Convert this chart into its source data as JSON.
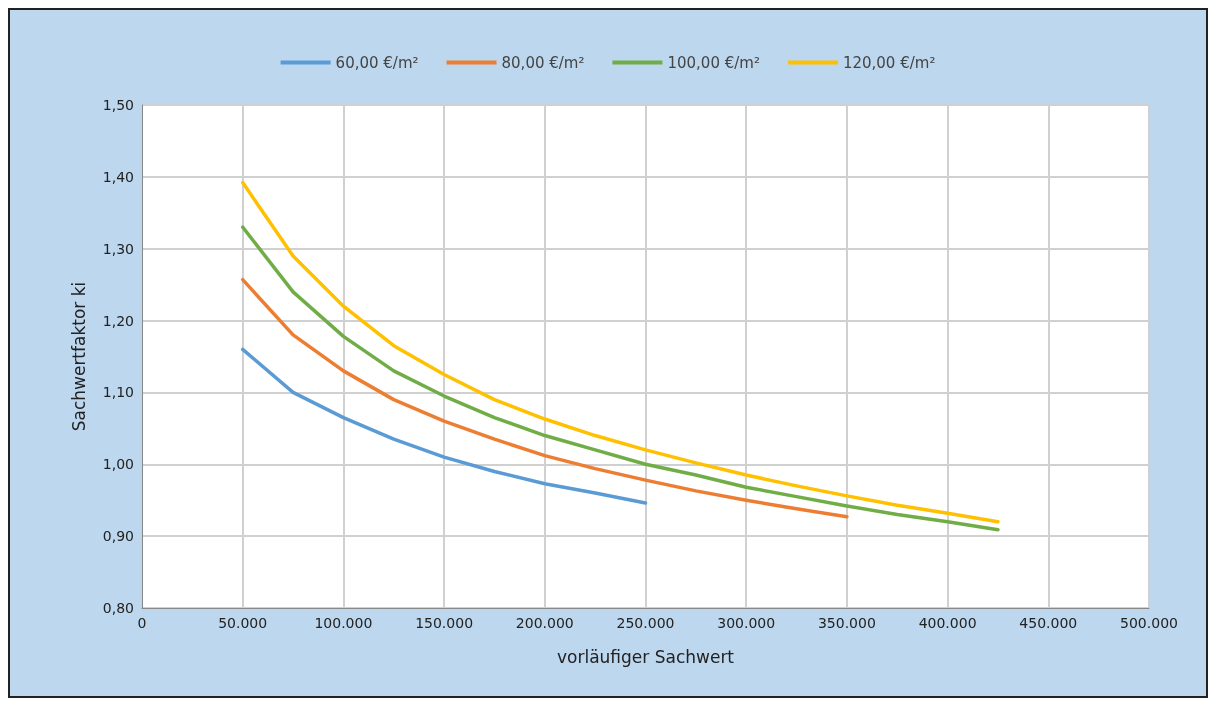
{
  "chart_data": {
    "type": "line",
    "xlabel": "vorläufiger Sachwert",
    "ylabel": "Sachwertfaktor ki",
    "xlim": [
      0,
      500000
    ],
    "xticks": [
      {
        "value": 0,
        "label": "0"
      },
      {
        "value": 50000,
        "label": "50.000"
      },
      {
        "value": 100000,
        "label": "100.000"
      },
      {
        "value": 150000,
        "label": "150.000"
      },
      {
        "value": 200000,
        "label": "200.000"
      },
      {
        "value": 250000,
        "label": "250.000"
      },
      {
        "value": 300000,
        "label": "300.000"
      },
      {
        "value": 350000,
        "label": "350.000"
      },
      {
        "value": 400000,
        "label": "400.000"
      },
      {
        "value": 450000,
        "label": "450.000"
      },
      {
        "value": 500000,
        "label": "500.000"
      }
    ],
    "ylim": [
      0.8,
      1.5
    ],
    "yticks": [
      {
        "value": 0.8,
        "label": "0,80"
      },
      {
        "value": 0.9,
        "label": "0,90"
      },
      {
        "value": 1.0,
        "label": "1,00"
      },
      {
        "value": 1.1,
        "label": "1,10"
      },
      {
        "value": 1.2,
        "label": "1,20"
      },
      {
        "value": 1.3,
        "label": "1,30"
      },
      {
        "value": 1.4,
        "label": "1,40"
      },
      {
        "value": 1.5,
        "label": "1,50"
      }
    ],
    "grid": true,
    "legend": "top",
    "marker": "none",
    "line_style": "solid",
    "series": [
      {
        "name": "60,00 €/m²",
        "color": "#5b9bd5",
        "x": [
          50000,
          75000,
          100000,
          125000,
          150000,
          175000,
          200000,
          225000,
          250000
        ],
        "values": [
          1.16,
          1.1,
          1.065,
          1.035,
          1.01,
          0.99,
          0.973,
          0.96,
          0.946
        ]
      },
      {
        "name": "80,00 €/m²",
        "color": "#ed7d31",
        "x": [
          50000,
          75000,
          100000,
          125000,
          150000,
          175000,
          200000,
          225000,
          250000,
          275000,
          300000,
          325000,
          350000
        ],
        "values": [
          1.257,
          1.18,
          1.13,
          1.09,
          1.06,
          1.035,
          1.012,
          0.994,
          0.978,
          0.963,
          0.95,
          0.938,
          0.927
        ]
      },
      {
        "name": "100,00 €/m²",
        "color": "#70ad47",
        "x": [
          50000,
          75000,
          100000,
          125000,
          150000,
          175000,
          200000,
          225000,
          250000,
          275000,
          300000,
          325000,
          350000,
          375000,
          400000,
          425000
        ],
        "values": [
          1.33,
          1.24,
          1.178,
          1.13,
          1.095,
          1.065,
          1.04,
          1.02,
          1.0,
          0.985,
          0.968,
          0.955,
          0.942,
          0.93,
          0.92,
          0.909
        ]
      },
      {
        "name": "120,00 €/m²",
        "color": "#ffc000",
        "x": [
          50000,
          75000,
          100000,
          125000,
          150000,
          175000,
          200000,
          225000,
          250000,
          275000,
          300000,
          325000,
          350000,
          375000,
          400000,
          425000
        ],
        "values": [
          1.392,
          1.29,
          1.22,
          1.165,
          1.125,
          1.09,
          1.063,
          1.04,
          1.02,
          1.002,
          0.985,
          0.97,
          0.956,
          0.943,
          0.932,
          0.92
        ]
      }
    ]
  }
}
